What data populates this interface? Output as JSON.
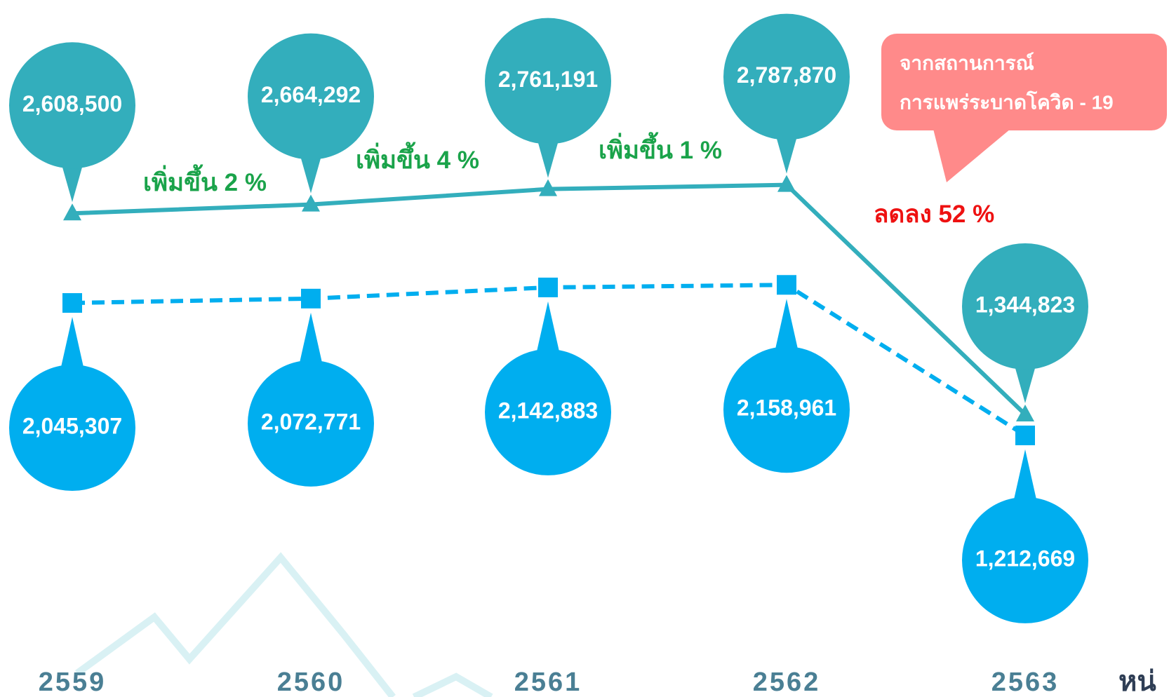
{
  "chart_data": {
    "type": "line",
    "categories": [
      "2559",
      "2560",
      "2561",
      "2562",
      "2563"
    ],
    "series": [
      {
        "name": null,
        "color": "#33aebc",
        "values": [
          2608500,
          2664292,
          2761191,
          2787870,
          1344823
        ],
        "value_labels": [
          "2,608,500",
          "2,664,292",
          "2,761,191",
          "2,787,870",
          "1,344,823"
        ]
      },
      {
        "name": null,
        "color": "#00aeef",
        "values": [
          2045307,
          2072771,
          2142883,
          2158961,
          1212669
        ],
        "value_labels": [
          "2,045,307",
          "2,072,771",
          "2,142,883",
          "2,158,961",
          "1,212,669"
        ]
      }
    ],
    "ylim": [
      0,
      3950000
    ],
    "annotations": [
      "เพิ่มขึ้น 2 %",
      "เพิ่มขึ้น 4 %",
      "เพิ่มขึ้น 1 %",
      "ลดลง 52 %"
    ],
    "callout": [
      "จากสถานการณ์",
      "การแพร่ระบาดโควิด - 19"
    ],
    "unit": "หน่"
  }
}
